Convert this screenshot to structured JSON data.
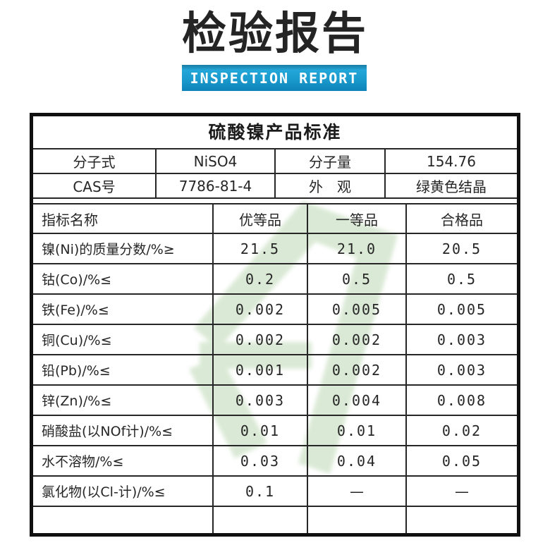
{
  "header": {
    "title": "检验报告",
    "subtitle": "INSPECTION REPORT"
  },
  "table": {
    "title": "硫酸镍产品标准",
    "info": {
      "rows": [
        [
          "分子式",
          "NiSO4",
          "分子量",
          "154.76"
        ],
        [
          "CAS号",
          "7786-81-4",
          "外　观",
          "绿黄色结晶"
        ]
      ]
    },
    "spec": {
      "header": [
        "指标名称",
        "优等品",
        "一等品",
        "合格品"
      ],
      "rows": [
        [
          "镍(Ni)的质量分数/%≥",
          "21.5",
          "21.0",
          "20.5"
        ],
        [
          "钴(Co)/%≤",
          "0.2",
          "0.5",
          "0.5"
        ],
        [
          "铁(Fe)/%≤",
          "0.002",
          "0.005",
          "0.005"
        ],
        [
          "铜(Cu)/%≤",
          "0.002",
          "0.002",
          "0.003"
        ],
        [
          "铅(Pb)/%≤",
          "0.001",
          "0.002",
          "0.003"
        ],
        [
          "锌(Zn)/%≤",
          "0.003",
          "0.004",
          "0.008"
        ],
        [
          "硝酸盐(以NOf计)/%≤",
          "0.01",
          "0.01",
          "0.02"
        ],
        [
          "水不溶物/%≤",
          "0.03",
          "0.04",
          "0.05"
        ],
        [
          "氯化物(以Cl-计)/%≤",
          "0.1",
          "—",
          "—"
        ]
      ],
      "empty_row": [
        "",
        "",
        "",
        ""
      ]
    }
  },
  "colors": {
    "banner_blue_top": "#23a6d9",
    "banner_blue_bottom": "#0d83b9",
    "border_dark": "#101010",
    "grid_line": "#262626",
    "text": "#262626",
    "watermark_green": "#d8e8d3"
  },
  "icons": {
    "watermark": "green-logo-watermark"
  }
}
